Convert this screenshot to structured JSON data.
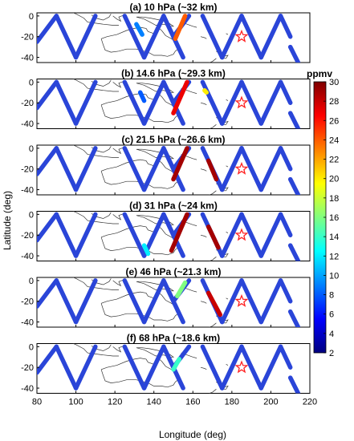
{
  "chart_data": {
    "type": "scatter",
    "xlabel": "Longitude (deg)",
    "ylabel": "Latitude (deg)",
    "xlim": [
      80,
      220
    ],
    "ylim": [
      -45,
      3
    ],
    "x_ticks": [
      80,
      100,
      120,
      140,
      160,
      180,
      200,
      220
    ],
    "y_ticks": [
      0,
      -20,
      -40
    ],
    "colorbar": {
      "title": "ppmv",
      "range": [
        2,
        30
      ],
      "ticks": [
        30,
        28,
        26,
        24,
        22,
        20,
        18,
        16,
        14,
        12,
        10,
        8,
        6,
        4,
        2
      ],
      "colormap": [
        "#00007f",
        "#0000ff",
        "#0080ff",
        "#00ffff",
        "#80ff80",
        "#ffff00",
        "#ff8000",
        "#ff0000",
        "#7f0000"
      ]
    },
    "background_value": 3,
    "track_color": "#2a45d8",
    "marker": {
      "symbol": "star",
      "lon": 185,
      "lat": -20,
      "color": "#ff2020"
    },
    "tracks": [
      {
        "x": [
          80,
          90
        ],
        "y": [
          -25,
          0
        ]
      },
      {
        "x": [
          90,
          100
        ],
        "y": [
          0,
          -40
        ]
      },
      {
        "x": [
          100,
          110
        ],
        "y": [
          -40,
          0
        ]
      },
      {
        "x": [
          125,
          135
        ],
        "y": [
          0,
          -40
        ]
      },
      {
        "x": [
          135,
          145
        ],
        "y": [
          -40,
          0
        ]
      },
      {
        "x": [
          145,
          155
        ],
        "y": [
          0,
          -40
        ]
      },
      {
        "x": [
          150,
          158
        ],
        "y": [
          -20,
          0
        ]
      },
      {
        "x": [
          165,
          175
        ],
        "y": [
          0,
          -40
        ]
      },
      {
        "x": [
          175,
          185
        ],
        "y": [
          -40,
          0
        ]
      },
      {
        "x": [
          185,
          195
        ],
        "y": [
          0,
          -40
        ]
      },
      {
        "x": [
          195,
          205
        ],
        "y": [
          -40,
          0
        ]
      },
      {
        "x": [
          205,
          210
        ],
        "y": [
          0,
          -20
        ]
      },
      {
        "x": [
          210,
          214
        ],
        "y": [
          -30,
          -45
        ]
      }
    ],
    "panels": [
      {
        "title": "(a) 10 hPa (~32 km)",
        "plumes": [
          {
            "lon": [
              131,
              134
            ],
            "lat": [
              -8,
              -18
            ],
            "value": 9
          },
          {
            "lon": [
              151,
              156
            ],
            "lat": [
              -22,
              0
            ],
            "value": 24
          }
        ]
      },
      {
        "title": "(b) 14.6 hPa (~29.3 km)",
        "plumes": [
          {
            "lon": [
              133,
              135
            ],
            "lat": [
              -10,
              -18
            ],
            "value": 8
          },
          {
            "lon": [
              150,
              157
            ],
            "lat": [
              -30,
              0
            ],
            "value": 27
          },
          {
            "lon": [
              166,
              167
            ],
            "lat": [
              -8,
              -10
            ],
            "value": 20
          }
        ]
      },
      {
        "title": "(c) 21.5 hPa (~26.6 km)",
        "plumes": [
          {
            "lon": [
              150,
              157
            ],
            "lat": [
              -30,
              0
            ],
            "value": 29
          },
          {
            "lon": [
              168,
              172
            ],
            "lat": [
              -12,
              -30
            ],
            "value": 29
          }
        ]
      },
      {
        "title": "(d) 31 hPa (~24 km)",
        "plumes": [
          {
            "lon": [
              149,
              157
            ],
            "lat": [
              -35,
              0
            ],
            "value": 29
          },
          {
            "lon": [
              168,
              173
            ],
            "lat": [
              -12,
              -32
            ],
            "value": 29
          },
          {
            "lon": [
              135,
              137
            ],
            "lat": [
              -30,
              -38
            ],
            "value": 12
          }
        ]
      },
      {
        "title": "(e) 46 hPa (~21.3 km)",
        "plumes": [
          {
            "lon": [
              152,
              156
            ],
            "lat": [
              -15,
              -2
            ],
            "value": 16
          },
          {
            "lon": [
              168,
              174
            ],
            "lat": [
              -12,
              -33
            ],
            "value": 28
          }
        ]
      },
      {
        "title": "(f) 68 hPa (~18.6 km)",
        "plumes": [
          {
            "lon": [
              150,
              153
            ],
            "lat": [
              -22,
              -12
            ],
            "value": 14
          }
        ]
      }
    ]
  }
}
